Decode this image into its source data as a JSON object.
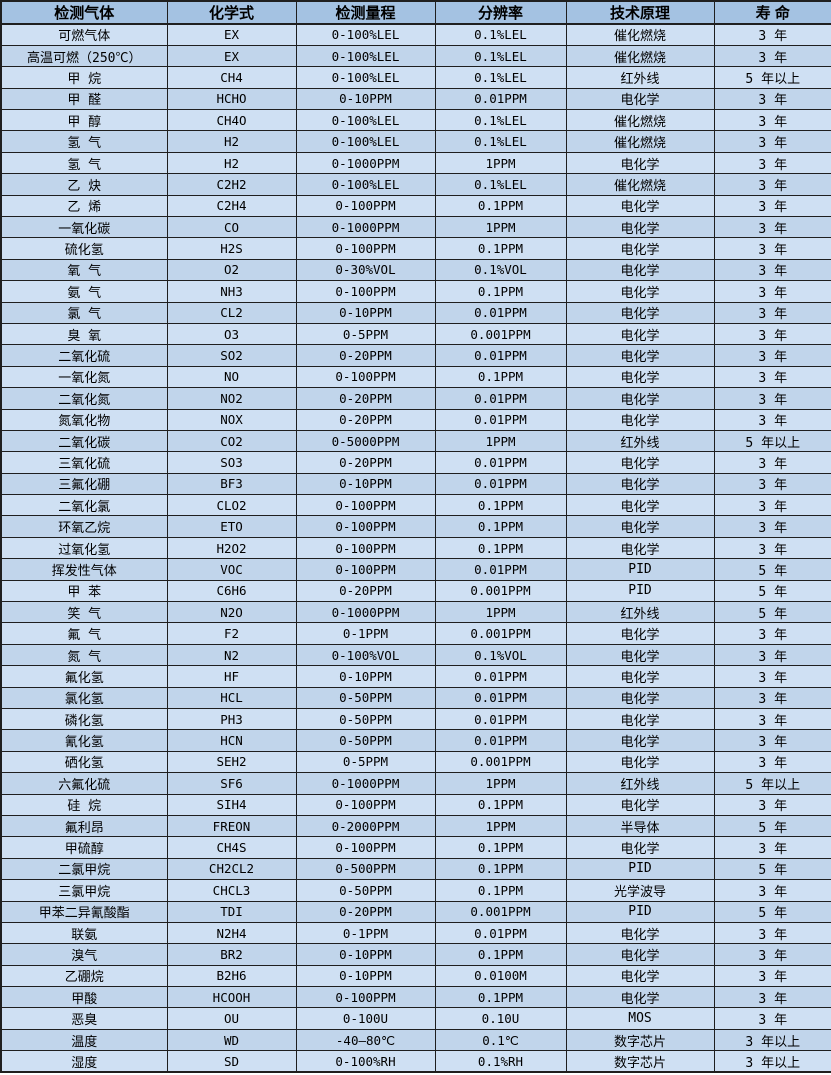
{
  "colors": {
    "header_bg": "#a4c2e2",
    "row_odd_bg": "#cfe0f3",
    "row_even_bg": "#c1d5eb",
    "border": "#1f1f1f",
    "text": "#000000"
  },
  "table": {
    "columns": [
      "检测气体",
      "化学式",
      "检测量程",
      "分辨率",
      "技术原理",
      "寿 命"
    ],
    "rows": [
      [
        "可燃气体",
        "EX",
        "0-100%LEL",
        "0.1%LEL",
        "催化燃烧",
        "3 年"
      ],
      [
        "高温可燃（250℃）",
        "EX",
        "0-100%LEL",
        "0.1%LEL",
        "催化燃烧",
        "3 年"
      ],
      [
        "甲 烷",
        "CH4",
        "0-100%LEL",
        "0.1%LEL",
        "红外线",
        "5 年以上"
      ],
      [
        "甲 醛",
        "HCHO",
        "0-10PPM",
        "0.01PPM",
        "电化学",
        "3 年"
      ],
      [
        "甲 醇",
        "CH4O",
        "0-100%LEL",
        "0.1%LEL",
        "催化燃烧",
        "3 年"
      ],
      [
        "氢 气",
        "H2",
        "0-100%LEL",
        "0.1%LEL",
        "催化燃烧",
        "3 年"
      ],
      [
        "氢 气",
        "H2",
        "0-1000PPM",
        "1PPM",
        "电化学",
        "3 年"
      ],
      [
        "乙 炔",
        "C2H2",
        "0-100%LEL",
        "0.1%LEL",
        "催化燃烧",
        "3 年"
      ],
      [
        "乙 烯",
        "C2H4",
        "0-100PPM",
        "0.1PPM",
        "电化学",
        "3 年"
      ],
      [
        "一氧化碳",
        "CO",
        "0-1000PPM",
        "1PPM",
        "电化学",
        "3 年"
      ],
      [
        "硫化氢",
        "H2S",
        "0-100PPM",
        "0.1PPM",
        "电化学",
        "3 年"
      ],
      [
        "氧 气",
        "O2",
        "0-30%VOL",
        "0.1%VOL",
        "电化学",
        "3 年"
      ],
      [
        "氨 气",
        "NH3",
        "0-100PPM",
        "0.1PPM",
        "电化学",
        "3 年"
      ],
      [
        "氯 气",
        "CL2",
        "0-10PPM",
        "0.01PPM",
        "电化学",
        "3 年"
      ],
      [
        "臭 氧",
        "O3",
        "0-5PPM",
        "0.001PPM",
        "电化学",
        "3 年"
      ],
      [
        "二氧化硫",
        "SO2",
        "0-20PPM",
        "0.01PPM",
        "电化学",
        "3 年"
      ],
      [
        "一氧化氮",
        "NO",
        "0-100PPM",
        "0.1PPM",
        "电化学",
        "3 年"
      ],
      [
        "二氧化氮",
        "NO2",
        "0-20PPM",
        "0.01PPM",
        "电化学",
        "3 年"
      ],
      [
        "氮氧化物",
        "NOX",
        "0-20PPM",
        "0.01PPM",
        "电化学",
        "3 年"
      ],
      [
        "二氧化碳",
        "CO2",
        "0-5000PPM",
        "1PPM",
        "红外线",
        "5 年以上"
      ],
      [
        "三氧化硫",
        "SO3",
        "0-20PPM",
        "0.01PPM",
        "电化学",
        "3 年"
      ],
      [
        "三氟化硼",
        "BF3",
        "0-10PPM",
        "0.01PPM",
        "电化学",
        "3 年"
      ],
      [
        "二氧化氯",
        "CLO2",
        "0-100PPM",
        "0.1PPM",
        "电化学",
        "3 年"
      ],
      [
        "环氧乙烷",
        "ETO",
        "0-100PPM",
        "0.1PPM",
        "电化学",
        "3 年"
      ],
      [
        "过氧化氢",
        "H2O2",
        "0-100PPM",
        "0.1PPM",
        "电化学",
        "3 年"
      ],
      [
        "挥发性气体",
        "VOC",
        "0-100PPM",
        "0.01PPM",
        "PID",
        "5 年"
      ],
      [
        "甲 苯",
        "C6H6",
        "0-20PPM",
        "0.001PPM",
        "PID",
        "5 年"
      ],
      [
        "笑 气",
        "N2O",
        "0-1000PPM",
        "1PPM",
        "红外线",
        "5 年"
      ],
      [
        "氟 气",
        "F2",
        "0-1PPM",
        "0.001PPM",
        "电化学",
        "3 年"
      ],
      [
        "氮 气",
        "N2",
        "0-100%VOL",
        "0.1%VOL",
        "电化学",
        "3 年"
      ],
      [
        "氟化氢",
        "HF",
        "0-10PPM",
        "0.01PPM",
        "电化学",
        "3 年"
      ],
      [
        "氯化氢",
        "HCL",
        "0-50PPM",
        "0.01PPM",
        "电化学",
        "3 年"
      ],
      [
        "磷化氢",
        "PH3",
        "0-50PPM",
        "0.01PPM",
        "电化学",
        "3 年"
      ],
      [
        "氰化氢",
        "HCN",
        "0-50PPM",
        "0.01PPM",
        "电化学",
        "3 年"
      ],
      [
        "硒化氢",
        "SEH2",
        "0-5PPM",
        "0.001PPM",
        "电化学",
        "3 年"
      ],
      [
        "六氟化硫",
        "SF6",
        "0-1000PPM",
        "1PPM",
        "红外线",
        "5 年以上"
      ],
      [
        "硅 烷",
        "SIH4",
        "0-100PPM",
        "0.1PPM",
        "电化学",
        "3 年"
      ],
      [
        "氟利昂",
        "FREON",
        "0-2000PPM",
        "1PPM",
        "半导体",
        "5 年"
      ],
      [
        "甲硫醇",
        "CH4S",
        "0-100PPM",
        "0.1PPM",
        "电化学",
        "3 年"
      ],
      [
        "二氯甲烷",
        "CH2CL2",
        "0-500PPM",
        "0.1PPM",
        "PID",
        "5 年"
      ],
      [
        "三氯甲烷",
        "CHCL3",
        "0-50PPM",
        "0.1PPM",
        "光学波导",
        "3 年"
      ],
      [
        "甲苯二异氰酸酯",
        "TDI",
        "0-20PPM",
        "0.001PPM",
        "PID",
        "5 年"
      ],
      [
        "联氨",
        "N2H4",
        "0-1PPM",
        "0.01PPM",
        "电化学",
        "3 年"
      ],
      [
        "溴气",
        "BR2",
        "0-10PPM",
        "0.1PPM",
        "电化学",
        "3 年"
      ],
      [
        "乙硼烷",
        "B2H6",
        "0-10PPM",
        "0.0100M",
        "电化学",
        "3 年"
      ],
      [
        "甲酸",
        "HCOOH",
        "0-100PPM",
        "0.1PPM",
        "电化学",
        "3 年"
      ],
      [
        "恶臭",
        "OU",
        "0-100U",
        "0.10U",
        "MOS",
        "3 年"
      ],
      [
        "温度",
        "WD",
        "-40—80℃",
        "0.1℃",
        "数字芯片",
        "3 年以上"
      ],
      [
        "湿度",
        "SD",
        "0-100%RH",
        "0.1%RH",
        "数字芯片",
        "3 年以上"
      ]
    ],
    "column_names": [
      "gas-name",
      "chemical-formula",
      "detection-range",
      "resolution",
      "technology-principle",
      "lifespan"
    ]
  }
}
